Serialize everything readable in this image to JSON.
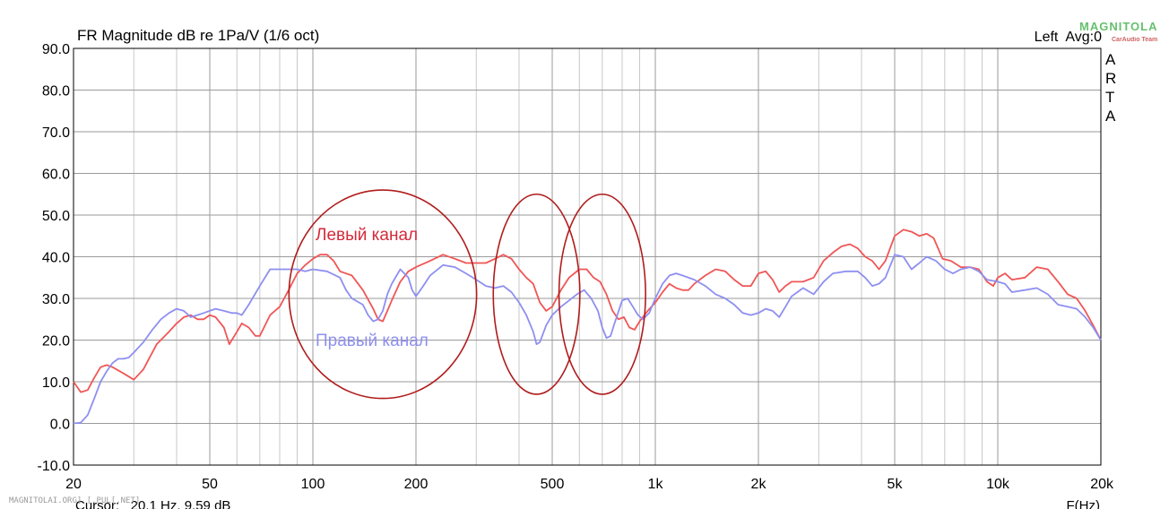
{
  "chart_data": {
    "type": "line",
    "title": "FR Magnitude dB re 1Pa/V (1/6 oct)",
    "corner_label": "Left  Avg:0",
    "side_label": [
      "A",
      "R",
      "T",
      "A"
    ],
    "xlabel": "F(Hz)",
    "x_scale": "log",
    "xlim": [
      20,
      20000
    ],
    "ylim": [
      -10,
      90
    ],
    "x_ticks": [
      {
        "value": 20,
        "label": "20"
      },
      {
        "value": 50,
        "label": "50"
      },
      {
        "value": 100,
        "label": "100"
      },
      {
        "value": 200,
        "label": "200"
      },
      {
        "value": 500,
        "label": "500"
      },
      {
        "value": 1000,
        "label": "1k"
      },
      {
        "value": 2000,
        "label": "2k"
      },
      {
        "value": 5000,
        "label": "5k"
      },
      {
        "value": 10000,
        "label": "10k"
      },
      {
        "value": 20000,
        "label": "20k"
      }
    ],
    "y_ticks": [
      {
        "value": 90,
        "label": "90.0"
      },
      {
        "value": 80,
        "label": "80.0"
      },
      {
        "value": 70,
        "label": "70.0"
      },
      {
        "value": 60,
        "label": "60.0"
      },
      {
        "value": 50,
        "label": "50.0"
      },
      {
        "value": 40,
        "label": "40.0"
      },
      {
        "value": 30,
        "label": "30.0"
      },
      {
        "value": 20,
        "label": "20.0"
      },
      {
        "value": 10,
        "label": "10.0"
      },
      {
        "value": 0,
        "label": "0.0"
      },
      {
        "value": -10,
        "label": "-10.0"
      }
    ],
    "grid": true,
    "series": [
      {
        "name": "Левый канал",
        "color": "#f05656",
        "label_color": "#d42a3a",
        "points": [
          [
            20,
            10
          ],
          [
            21,
            7.5
          ],
          [
            22,
            8
          ],
          [
            23,
            11
          ],
          [
            24,
            13.5
          ],
          [
            25,
            14
          ],
          [
            26,
            13.5
          ],
          [
            28,
            12
          ],
          [
            30,
            10.5
          ],
          [
            32,
            13
          ],
          [
            35,
            19
          ],
          [
            38,
            22
          ],
          [
            40,
            24
          ],
          [
            42,
            25.5
          ],
          [
            44,
            26
          ],
          [
            46,
            25
          ],
          [
            48,
            25
          ],
          [
            50,
            26
          ],
          [
            52,
            25.5
          ],
          [
            55,
            23
          ],
          [
            57,
            19
          ],
          [
            60,
            22
          ],
          [
            62,
            24
          ],
          [
            65,
            23
          ],
          [
            68,
            21
          ],
          [
            70,
            21
          ],
          [
            75,
            26
          ],
          [
            80,
            28
          ],
          [
            85,
            32
          ],
          [
            90,
            36
          ],
          [
            95,
            38
          ],
          [
            100,
            39.5
          ],
          [
            105,
            40.5
          ],
          [
            110,
            40.5
          ],
          [
            115,
            39
          ],
          [
            120,
            36.5
          ],
          [
            130,
            35.5
          ],
          [
            140,
            32
          ],
          [
            150,
            27.5
          ],
          [
            155,
            25
          ],
          [
            160,
            24.5
          ],
          [
            165,
            27
          ],
          [
            170,
            29.5
          ],
          [
            180,
            34
          ],
          [
            190,
            36.5
          ],
          [
            200,
            37.5
          ],
          [
            220,
            39
          ],
          [
            240,
            40.5
          ],
          [
            260,
            39.5
          ],
          [
            280,
            38.5
          ],
          [
            300,
            38.5
          ],
          [
            320,
            38.5
          ],
          [
            340,
            39.5
          ],
          [
            360,
            40.5
          ],
          [
            380,
            39.5
          ],
          [
            400,
            37
          ],
          [
            420,
            35
          ],
          [
            440,
            33.5
          ],
          [
            460,
            29
          ],
          [
            480,
            27
          ],
          [
            500,
            28
          ],
          [
            530,
            32
          ],
          [
            560,
            35
          ],
          [
            600,
            37
          ],
          [
            630,
            37
          ],
          [
            660,
            35
          ],
          [
            690,
            34
          ],
          [
            720,
            31
          ],
          [
            750,
            27
          ],
          [
            780,
            25
          ],
          [
            810,
            25.5
          ],
          [
            840,
            23
          ],
          [
            870,
            22.5
          ],
          [
            900,
            24.5
          ],
          [
            950,
            27
          ],
          [
            1000,
            29
          ],
          [
            1050,
            31.5
          ],
          [
            1100,
            33.5
          ],
          [
            1150,
            32.5
          ],
          [
            1200,
            32
          ],
          [
            1250,
            32
          ],
          [
            1300,
            33.5
          ],
          [
            1400,
            35.5
          ],
          [
            1500,
            37
          ],
          [
            1600,
            36.5
          ],
          [
            1700,
            34.5
          ],
          [
            1800,
            33
          ],
          [
            1900,
            33
          ],
          [
            2000,
            36
          ],
          [
            2100,
            36.5
          ],
          [
            2200,
            34.5
          ],
          [
            2300,
            31.5
          ],
          [
            2400,
            33
          ],
          [
            2500,
            34
          ],
          [
            2700,
            34
          ],
          [
            2900,
            35
          ],
          [
            3100,
            39
          ],
          [
            3300,
            41
          ],
          [
            3500,
            42.5
          ],
          [
            3700,
            43
          ],
          [
            3900,
            42
          ],
          [
            4100,
            40
          ],
          [
            4300,
            39
          ],
          [
            4500,
            37
          ],
          [
            4700,
            39
          ],
          [
            5000,
            45
          ],
          [
            5300,
            46.5
          ],
          [
            5600,
            46
          ],
          [
            5900,
            45
          ],
          [
            6200,
            45.5
          ],
          [
            6500,
            44.5
          ],
          [
            6900,
            39.5
          ],
          [
            7300,
            39
          ],
          [
            7800,
            37.5
          ],
          [
            8300,
            37.5
          ],
          [
            8800,
            37
          ],
          [
            9300,
            34
          ],
          [
            9700,
            33
          ],
          [
            10000,
            35
          ],
          [
            10500,
            36
          ],
          [
            11000,
            34.5
          ],
          [
            12000,
            35
          ],
          [
            13000,
            37.5
          ],
          [
            14000,
            37
          ],
          [
            15000,
            34
          ],
          [
            16000,
            31
          ],
          [
            17000,
            30
          ],
          [
            18000,
            27
          ],
          [
            19000,
            23.5
          ],
          [
            20000,
            20
          ]
        ]
      },
      {
        "name": "Правый канал",
        "color": "#8e8ff0",
        "label_color": "#8e8ff0",
        "points": [
          [
            20,
            0
          ],
          [
            21,
            0.2
          ],
          [
            22,
            2
          ],
          [
            23,
            6
          ],
          [
            24,
            10
          ],
          [
            25,
            12.5
          ],
          [
            26,
            14.5
          ],
          [
            27,
            15.5
          ],
          [
            28,
            15.5
          ],
          [
            29,
            15.8
          ],
          [
            30,
            17
          ],
          [
            32,
            19.5
          ],
          [
            34,
            22.5
          ],
          [
            36,
            25
          ],
          [
            38,
            26.5
          ],
          [
            40,
            27.5
          ],
          [
            42,
            27
          ],
          [
            44,
            25.5
          ],
          [
            46,
            26
          ],
          [
            48,
            26.5
          ],
          [
            50,
            27
          ],
          [
            52,
            27.5
          ],
          [
            55,
            27
          ],
          [
            58,
            26.5
          ],
          [
            60,
            26.5
          ],
          [
            62,
            26
          ],
          [
            65,
            28.5
          ],
          [
            70,
            33
          ],
          [
            75,
            37
          ],
          [
            80,
            37
          ],
          [
            85,
            37
          ],
          [
            90,
            37
          ],
          [
            95,
            36.5
          ],
          [
            100,
            37
          ],
          [
            110,
            36.5
          ],
          [
            120,
            35
          ],
          [
            125,
            32
          ],
          [
            130,
            30
          ],
          [
            140,
            28.5
          ],
          [
            145,
            26
          ],
          [
            150,
            24.5
          ],
          [
            155,
            25
          ],
          [
            160,
            27
          ],
          [
            165,
            31
          ],
          [
            170,
            33.5
          ],
          [
            180,
            37
          ],
          [
            190,
            35
          ],
          [
            195,
            32
          ],
          [
            200,
            30.5
          ],
          [
            210,
            33
          ],
          [
            220,
            35.5
          ],
          [
            240,
            38
          ],
          [
            260,
            37.5
          ],
          [
            280,
            36
          ],
          [
            300,
            34.5
          ],
          [
            320,
            33
          ],
          [
            340,
            32.5
          ],
          [
            360,
            33
          ],
          [
            380,
            31.5
          ],
          [
            400,
            29
          ],
          [
            420,
            26
          ],
          [
            440,
            22
          ],
          [
            450,
            19
          ],
          [
            460,
            19.5
          ],
          [
            480,
            23.5
          ],
          [
            500,
            26
          ],
          [
            530,
            28
          ],
          [
            560,
            29.5
          ],
          [
            590,
            31
          ],
          [
            620,
            32
          ],
          [
            650,
            30
          ],
          [
            680,
            27
          ],
          [
            700,
            23
          ],
          [
            720,
            20.5
          ],
          [
            740,
            21
          ],
          [
            760,
            24
          ],
          [
            800,
            29.5
          ],
          [
            830,
            30
          ],
          [
            860,
            28
          ],
          [
            890,
            26
          ],
          [
            920,
            25
          ],
          [
            960,
            26.5
          ],
          [
            1000,
            30
          ],
          [
            1050,
            33.5
          ],
          [
            1100,
            35.5
          ],
          [
            1150,
            36
          ],
          [
            1200,
            35.5
          ],
          [
            1300,
            34.5
          ],
          [
            1400,
            33
          ],
          [
            1500,
            31
          ],
          [
            1600,
            30
          ],
          [
            1700,
            28.5
          ],
          [
            1800,
            26.5
          ],
          [
            1900,
            26
          ],
          [
            2000,
            26.5
          ],
          [
            2100,
            27.5
          ],
          [
            2200,
            27
          ],
          [
            2300,
            25.5
          ],
          [
            2400,
            28
          ],
          [
            2500,
            30.5
          ],
          [
            2700,
            32.5
          ],
          [
            2900,
            31
          ],
          [
            3100,
            34
          ],
          [
            3300,
            36
          ],
          [
            3600,
            36.5
          ],
          [
            3900,
            36.5
          ],
          [
            4100,
            35
          ],
          [
            4300,
            33
          ],
          [
            4500,
            33.5
          ],
          [
            4700,
            35
          ],
          [
            5000,
            40.5
          ],
          [
            5300,
            40
          ],
          [
            5600,
            37
          ],
          [
            5900,
            38.5
          ],
          [
            6200,
            40
          ],
          [
            6600,
            39
          ],
          [
            7000,
            37
          ],
          [
            7400,
            36
          ],
          [
            7800,
            37
          ],
          [
            8300,
            37.5
          ],
          [
            8800,
            36.5
          ],
          [
            9300,
            34.5
          ],
          [
            10000,
            34
          ],
          [
            10500,
            33.5
          ],
          [
            11000,
            31.5
          ],
          [
            12000,
            32
          ],
          [
            13000,
            32.5
          ],
          [
            14000,
            31
          ],
          [
            15000,
            28.5
          ],
          [
            16000,
            28
          ],
          [
            17000,
            27.5
          ],
          [
            18000,
            25.5
          ],
          [
            19000,
            23
          ],
          [
            20000,
            20
          ]
        ]
      }
    ],
    "annotations": [
      {
        "type": "ellipse",
        "center": [
          160,
          31
        ],
        "radius_octaves": 0.91,
        "radius_db": 25,
        "color": "#b01c1c"
      },
      {
        "type": "ellipse",
        "center": [
          450,
          31
        ],
        "radius_octaves": 0.42,
        "radius_db": 24,
        "color": "#b01c1c"
      },
      {
        "type": "ellipse",
        "center": [
          700,
          31
        ],
        "radius_octaves": 0.42,
        "radius_db": 24,
        "color": "#b01c1c"
      }
    ],
    "cursor_readout": "Cursor:   20.1 Hz, 9.59 dB"
  },
  "series_labels": {
    "left": "Левый канал",
    "right": "Правый канал"
  },
  "watermark_text": "MAGNITOLAI.ORG] [.PUL[.NET]",
  "logo": {
    "text": "MAGNITOLA",
    "subtext": "CarAudio Team"
  }
}
